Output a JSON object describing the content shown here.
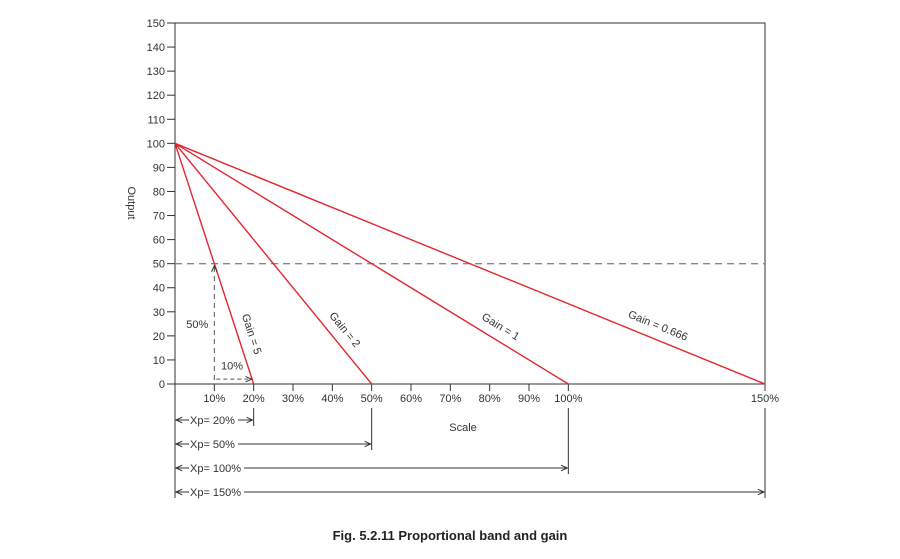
{
  "figure": {
    "caption": "Fig. 5.2.11 Proportional band and gain"
  },
  "chart_data": {
    "type": "line",
    "xlabel": "Scale",
    "ylabel": "Output",
    "xlim": [
      0,
      150
    ],
    "ylim": [
      0,
      150
    ],
    "x_ticks": [
      10,
      20,
      30,
      40,
      50,
      60,
      70,
      80,
      90,
      100,
      150
    ],
    "x_tick_labels": [
      "10%",
      "20%",
      "30%",
      "40%",
      "50%",
      "60%",
      "70%",
      "80%",
      "90%",
      "100%",
      "150%"
    ],
    "y_ticks": [
      0,
      10,
      20,
      30,
      40,
      50,
      60,
      70,
      80,
      90,
      100,
      110,
      120,
      130,
      140,
      150
    ],
    "y_tick_labels": [
      "0",
      "10",
      "20",
      "30",
      "40",
      "50",
      "60",
      "70",
      "80",
      "90",
      "100",
      "110",
      "120",
      "130",
      "140",
      "150"
    ],
    "series": [
      {
        "name": "Gain = 5",
        "points": [
          [
            0,
            100
          ],
          [
            20,
            0
          ]
        ]
      },
      {
        "name": "Gain = 2",
        "points": [
          [
            0,
            100
          ],
          [
            50,
            0
          ]
        ]
      },
      {
        "name": "Gain = 1",
        "points": [
          [
            0,
            100
          ],
          [
            100,
            0
          ]
        ]
      },
      {
        "name": "Gain = 0.666",
        "points": [
          [
            0,
            100
          ],
          [
            150,
            0
          ]
        ]
      }
    ],
    "series_color": "#e3262f",
    "reference_line_y": 50,
    "annotations": {
      "output_change": "50%",
      "scale_change": "10%"
    },
    "bands": [
      {
        "label": "Xp= 20%",
        "end": 20
      },
      {
        "label": "Xp= 50%",
        "end": 50
      },
      {
        "label": "Xp= 100%",
        "end": 100
      },
      {
        "label": "Xp= 150%",
        "end": 150
      }
    ],
    "grid": false
  }
}
